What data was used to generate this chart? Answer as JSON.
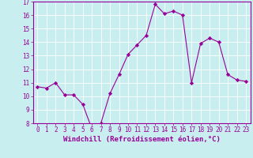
{
  "x": [
    0,
    1,
    2,
    3,
    4,
    5,
    6,
    7,
    8,
    9,
    10,
    11,
    12,
    13,
    14,
    15,
    16,
    17,
    18,
    19,
    20,
    21,
    22,
    23
  ],
  "y": [
    10.7,
    10.6,
    11.0,
    10.1,
    10.1,
    9.4,
    7.6,
    8.0,
    10.2,
    11.6,
    13.1,
    13.8,
    14.5,
    16.8,
    16.1,
    16.3,
    16.0,
    11.0,
    13.9,
    14.3,
    14.0,
    11.6,
    11.2,
    11.1
  ],
  "line_color": "#990099",
  "marker": "D",
  "marker_size": 2.2,
  "bg_color": "#c8eef0",
  "grid_color": "#b0d8dc",
  "xlabel": "Windchill (Refroidissement éolien,°C)",
  "ylim": [
    8,
    17
  ],
  "xlim": [
    -0.5,
    23.5
  ],
  "yticks": [
    8,
    9,
    10,
    11,
    12,
    13,
    14,
    15,
    16,
    17
  ],
  "xticks": [
    0,
    1,
    2,
    3,
    4,
    5,
    6,
    7,
    8,
    9,
    10,
    11,
    12,
    13,
    14,
    15,
    16,
    17,
    18,
    19,
    20,
    21,
    22,
    23
  ],
  "tick_color": "#990099",
  "label_color": "#990099",
  "spine_color": "#990099",
  "tick_fontsize": 5.5,
  "xlabel_fontsize": 6.5,
  "linewidth": 0.8
}
